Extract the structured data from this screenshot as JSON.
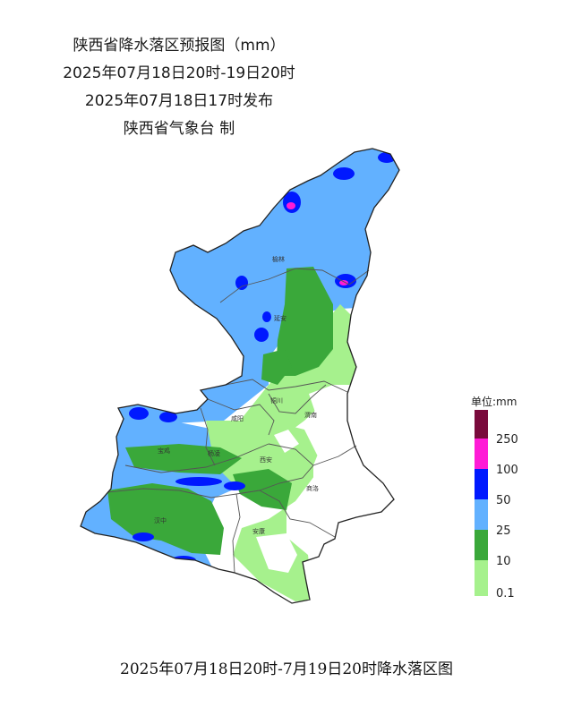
{
  "title": {
    "line1": "陕西省降水落区预报图（mm）",
    "line2": "2025年07月18日20时-19日20时",
    "line3": "2025年07月18日17时发布",
    "line4": "陕西省气象台 制"
  },
  "cities": [
    "榆林",
    "延安",
    "铜川",
    "渭南",
    "咸阳",
    "宝鸡",
    "杨凌",
    "西安",
    "商洛",
    "汉中",
    "安康"
  ],
  "legend": {
    "title": "单位:mm",
    "levels": [
      {
        "label": "",
        "color": "#7a0a3c"
      },
      {
        "label": "250",
        "color": "#ff1bd6"
      },
      {
        "label": "100",
        "color": "#0019ff"
      },
      {
        "label": "50",
        "color": "#62b1ff"
      },
      {
        "label": "25",
        "color": "#3aa83a"
      },
      {
        "label": "10",
        "color": "#a6f18d"
      },
      {
        "label": "0.1",
        "color": ""
      }
    ]
  },
  "caption": "2025年07月18日20时-7月19日20时降水落区图"
}
